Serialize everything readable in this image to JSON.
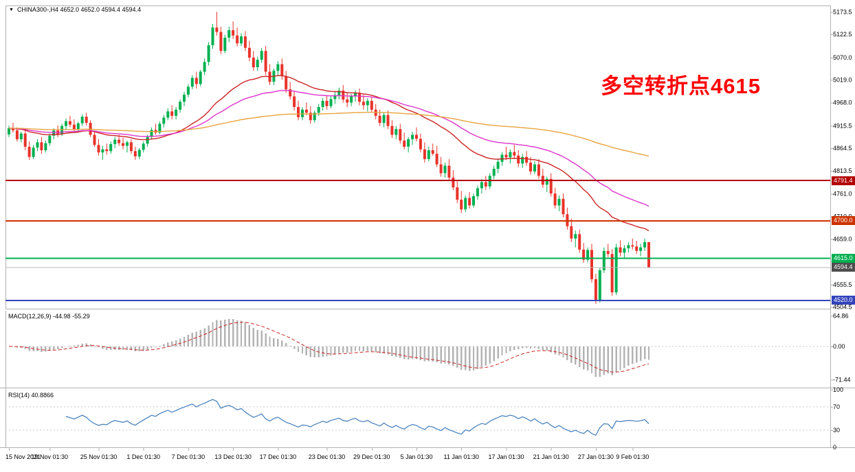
{
  "header": {
    "dropdown_icon": "▼",
    "symbol_line": "CHINA300-,H4 4652.0 4652.0 4594.4 4594.4"
  },
  "annotation": {
    "text": "多空转折点4615",
    "color": "#ff0000"
  },
  "colors": {
    "background": "#ffffff",
    "frame": "#b0b0b0",
    "text": "#000000",
    "candle_up": "#00b050",
    "candle_down": "#e8332a",
    "current_price_line": "#b8b8b8",
    "zero_line": "#c9c9c9"
  },
  "chart_data": {
    "type": "candlestick",
    "symbol": "CHINA300-",
    "timeframe": "H4",
    "ohlc_header": {
      "open": 4652.0,
      "high": 4652.0,
      "low": 4594.4,
      "close": 4594.4
    },
    "price_panel": {
      "ylim": [
        4501,
        5188
      ],
      "axis_ticks": [
        5173.5,
        5122.5,
        5070.0,
        5019.0,
        4968.0,
        4915.5,
        4864.5,
        4813.5,
        4761.0,
        4710.0,
        4659.0,
        4608.0,
        4555.5,
        4504.5
      ]
    },
    "ohlc": [
      [
        4896,
        4916,
        4890,
        4910
      ],
      [
        4910,
        4922,
        4900,
        4905
      ],
      [
        4905,
        4912,
        4880,
        4885
      ],
      [
        4885,
        4902,
        4878,
        4898
      ],
      [
        4898,
        4905,
        4860,
        4868
      ],
      [
        4868,
        4880,
        4838,
        4845
      ],
      [
        4845,
        4872,
        4840,
        4866
      ],
      [
        4866,
        4885,
        4858,
        4878
      ],
      [
        4878,
        4890,
        4852,
        4860
      ],
      [
        4860,
        4882,
        4855,
        4876
      ],
      [
        4876,
        4898,
        4870,
        4893
      ],
      [
        4893,
        4910,
        4885,
        4905
      ],
      [
        4905,
        4916,
        4890,
        4896
      ],
      [
        4896,
        4920,
        4892,
        4915
      ],
      [
        4915,
        4932,
        4905,
        4926
      ],
      [
        4926,
        4938,
        4912,
        4918
      ],
      [
        4918,
        4930,
        4902,
        4908
      ],
      [
        4908,
        4925,
        4900,
        4921
      ],
      [
        4921,
        4941,
        4915,
        4936
      ],
      [
        4936,
        4945,
        4916,
        4922
      ],
      [
        4922,
        4928,
        4890,
        4895
      ],
      [
        4895,
        4905,
        4868,
        4872
      ],
      [
        4872,
        4885,
        4848,
        4855
      ],
      [
        4855,
        4870,
        4838,
        4862
      ],
      [
        4862,
        4875,
        4850,
        4858
      ],
      [
        4858,
        4880,
        4852,
        4874
      ],
      [
        4874,
        4890,
        4865,
        4884
      ],
      [
        4884,
        4895,
        4870,
        4876
      ],
      [
        4876,
        4888,
        4862,
        4870
      ],
      [
        4870,
        4882,
        4855,
        4878
      ],
      [
        4878,
        4885,
        4852,
        4858
      ],
      [
        4858,
        4868,
        4838,
        4846
      ],
      [
        4846,
        4865,
        4840,
        4861
      ],
      [
        4861,
        4880,
        4855,
        4875
      ],
      [
        4875,
        4895,
        4868,
        4890
      ],
      [
        4890,
        4912,
        4884,
        4906
      ],
      [
        4906,
        4920,
        4895,
        4900
      ],
      [
        4900,
        4925,
        4896,
        4920
      ],
      [
        4920,
        4940,
        4912,
        4934
      ],
      [
        4934,
        4955,
        4928,
        4948
      ],
      [
        4948,
        4962,
        4930,
        4938
      ],
      [
        4938,
        4958,
        4930,
        4952
      ],
      [
        4952,
        4975,
        4945,
        4970
      ],
      [
        4970,
        4992,
        4960,
        4986
      ],
      [
        4986,
        5010,
        4980,
        5004
      ],
      [
        5004,
        5030,
        4998,
        5024
      ],
      [
        5024,
        5038,
        5000,
        5010
      ],
      [
        5010,
        5042,
        5005,
        5038
      ],
      [
        5038,
        5068,
        5030,
        5060
      ],
      [
        5060,
        5105,
        5052,
        5098
      ],
      [
        5098,
        5146,
        5090,
        5138
      ],
      [
        5138,
        5173.5,
        5120,
        5128
      ],
      [
        5128,
        5140,
        5078,
        5085
      ],
      [
        5085,
        5122,
        5080,
        5115
      ],
      [
        5115,
        5140,
        5105,
        5132
      ],
      [
        5132,
        5152,
        5112,
        5120
      ],
      [
        5120,
        5138,
        5095,
        5102
      ],
      [
        5102,
        5125,
        5096,
        5118
      ],
      [
        5118,
        5130,
        5085,
        5092
      ],
      [
        5092,
        5108,
        5062,
        5070
      ],
      [
        5070,
        5085,
        5040,
        5048
      ],
      [
        5048,
        5072,
        5040,
        5065
      ],
      [
        5065,
        5092,
        5058,
        5085
      ],
      [
        5085,
        5096,
        5030,
        5038
      ],
      [
        5038,
        5055,
        5008,
        5015
      ],
      [
        5015,
        5045,
        5008,
        5040
      ],
      [
        5040,
        5062,
        5030,
        5055
      ],
      [
        5055,
        5068,
        5020,
        5028
      ],
      [
        5028,
        5040,
        4990,
        4998
      ],
      [
        4998,
        5015,
        4975,
        4982
      ],
      [
        4982,
        4995,
        4950,
        4958
      ],
      [
        4958,
        4972,
        4928,
        4935
      ],
      [
        4935,
        4958,
        4928,
        4952
      ],
      [
        4952,
        4968,
        4940,
        4945
      ],
      [
        4945,
        4960,
        4920,
        4928
      ],
      [
        4928,
        4950,
        4922,
        4945
      ],
      [
        4945,
        4965,
        4938,
        4958
      ],
      [
        4958,
        4978,
        4950,
        4972
      ],
      [
        4972,
        4985,
        4952,
        4960
      ],
      [
        4960,
        4982,
        4955,
        4976
      ],
      [
        4976,
        4992,
        4965,
        4985
      ],
      [
        4985,
        5002,
        4975,
        4995
      ],
      [
        4995,
        5008,
        4968,
        4975
      ],
      [
        4975,
        4990,
        4958,
        4968
      ],
      [
        4968,
        4988,
        4960,
        4982
      ],
      [
        4982,
        4996,
        4970,
        4990
      ],
      [
        4990,
        5000,
        4962,
        4970
      ],
      [
        4970,
        4985,
        4952,
        4962
      ],
      [
        4962,
        4978,
        4948,
        4972
      ],
      [
        4972,
        4982,
        4945,
        4952
      ],
      [
        4952,
        4965,
        4930,
        4938
      ],
      [
        4938,
        4952,
        4915,
        4922
      ],
      [
        4922,
        4945,
        4912,
        4940
      ],
      [
        4940,
        4950,
        4908,
        4915
      ],
      [
        4915,
        4928,
        4888,
        4895
      ],
      [
        4895,
        4915,
        4885,
        4908
      ],
      [
        4908,
        4920,
        4875,
        4882
      ],
      [
        4882,
        4900,
        4862,
        4868
      ],
      [
        4868,
        4890,
        4855,
        4885
      ],
      [
        4885,
        4902,
        4872,
        4895
      ],
      [
        4895,
        4912,
        4880,
        4886
      ],
      [
        4886,
        4898,
        4855,
        4862
      ],
      [
        4862,
        4878,
        4832,
        4840
      ],
      [
        4840,
        4868,
        4835,
        4860
      ],
      [
        4860,
        4875,
        4848,
        4852
      ],
      [
        4852,
        4870,
        4822,
        4828
      ],
      [
        4828,
        4845,
        4800,
        4808
      ],
      [
        4808,
        4832,
        4798,
        4825
      ],
      [
        4825,
        4840,
        4792,
        4798
      ],
      [
        4798,
        4815,
        4770,
        4776
      ],
      [
        4776,
        4790,
        4740,
        4748
      ],
      [
        4748,
        4768,
        4718,
        4726
      ],
      [
        4726,
        4758,
        4720,
        4752
      ],
      [
        4752,
        4765,
        4728,
        4735
      ],
      [
        4735,
        4762,
        4730,
        4756
      ],
      [
        4756,
        4780,
        4748,
        4774
      ],
      [
        4774,
        4795,
        4762,
        4788
      ],
      [
        4788,
        4802,
        4770,
        4778
      ],
      [
        4778,
        4808,
        4772,
        4802
      ],
      [
        4802,
        4825,
        4795,
        4818
      ],
      [
        4818,
        4840,
        4808,
        4834
      ],
      [
        4834,
        4856,
        4825,
        4850
      ],
      [
        4850,
        4868,
        4838,
        4844
      ],
      [
        4844,
        4862,
        4830,
        4856
      ],
      [
        4856,
        4872,
        4840,
        4848
      ],
      [
        4848,
        4860,
        4822,
        4830
      ],
      [
        4830,
        4852,
        4820,
        4845
      ],
      [
        4845,
        4858,
        4825,
        4832
      ],
      [
        4832,
        4845,
        4805,
        4812
      ],
      [
        4812,
        4835,
        4806,
        4828
      ],
      [
        4828,
        4840,
        4795,
        4802
      ],
      [
        4802,
        4818,
        4775,
        4782
      ],
      [
        4782,
        4800,
        4765,
        4795
      ],
      [
        4795,
        4808,
        4755,
        4762
      ],
      [
        4762,
        4775,
        4728,
        4735
      ],
      [
        4735,
        4758,
        4722,
        4750
      ],
      [
        4750,
        4762,
        4708,
        4715
      ],
      [
        4715,
        4730,
        4680,
        4688
      ],
      [
        4688,
        4705,
        4652,
        4660
      ],
      [
        4660,
        4678,
        4640,
        4670
      ],
      [
        4670,
        4680,
        4628,
        4635
      ],
      [
        4635,
        4650,
        4605,
        4612
      ],
      [
        4612,
        4640,
        4606,
        4634
      ],
      [
        4634,
        4648,
        4560,
        4568
      ],
      [
        4568,
        4580,
        4512,
        4520
      ],
      [
        4520,
        4595,
        4515,
        4588
      ],
      [
        4588,
        4640,
        4582,
        4632
      ],
      [
        4632,
        4648,
        4618,
        4625
      ],
      [
        4625,
        4636,
        4530,
        4538
      ],
      [
        4538,
        4648,
        4532,
        4640
      ],
      [
        4640,
        4656,
        4620,
        4628
      ],
      [
        4628,
        4645,
        4615,
        4638
      ],
      [
        4638,
        4652,
        4628,
        4645
      ],
      [
        4645,
        4660,
        4635,
        4642
      ],
      [
        4642,
        4655,
        4625,
        4632
      ],
      [
        4632,
        4648,
        4620,
        4640
      ],
      [
        4640,
        4660,
        4632,
        4652
      ],
      [
        4652,
        4652,
        4594.4,
        4594.4
      ]
    ],
    "time_ticks": [
      {
        "i": 0,
        "label": "15 Nov 2021"
      },
      {
        "i": 10,
        "label": "19 Nov 01:30"
      },
      {
        "i": 22,
        "label": "25 Nov 01:30"
      },
      {
        "i": 33,
        "label": "1 Dec 01:30"
      },
      {
        "i": 44,
        "label": "7 Dec 01:30"
      },
      {
        "i": 55,
        "label": "13 Dec 01:30"
      },
      {
        "i": 66,
        "label": "17 Dec 01:30"
      },
      {
        "i": 78,
        "label": "23 Dec 01:30"
      },
      {
        "i": 89,
        "label": "29 Dec 01:30"
      },
      {
        "i": 100,
        "label": "5 Jan 01:30"
      },
      {
        "i": 111,
        "label": "11 Jan 01:30"
      },
      {
        "i": 122,
        "label": "17 Jan 01:30"
      },
      {
        "i": 133,
        "label": "21 Jan 01:30"
      },
      {
        "i": 144,
        "label": "27 Jan 01:30"
      },
      {
        "i": 153,
        "label": "9 Feb 01:30"
      }
    ],
    "moving_averages": [
      {
        "name": "ma-fast-red",
        "period": 34,
        "color": "#cc2222"
      },
      {
        "name": "ma-mid-magenta",
        "period": 60,
        "color": "#dd33cc"
      },
      {
        "name": "ma-slow-orange",
        "period": 200,
        "color": "#e8a33d"
      }
    ],
    "hlines": [
      {
        "price": 4791.4,
        "label": "4791.4",
        "color": "#b30000",
        "width": 2
      },
      {
        "price": 4700.0,
        "label": "4700.0",
        "color": "#cc3300",
        "width": 2
      },
      {
        "price": 4615.0,
        "label": "4615.0",
        "color": "#00b050",
        "width": 2
      },
      {
        "price": 4520.0,
        "label": "4520.0",
        "color": "#3344bb",
        "width": 2
      }
    ],
    "current_price": {
      "value": 4594.4,
      "label": "4594.4",
      "tag_bg": "#4d4d4d"
    },
    "macd": {
      "label": "MACD(12,26,9)",
      "values_text": "-44.98 -55.29",
      "fast": 12,
      "slow": 26,
      "signal": 9,
      "ylim": [
        -88,
        76
      ],
      "axis_values": [
        64.86,
        0,
        -71.44
      ],
      "axis_labels": [
        "64.86",
        "0.00",
        "-71.44"
      ],
      "hist_color": "#b3b3b3",
      "signal_color": "#cc2222"
    },
    "rsi": {
      "label": "RSI(14)",
      "value_text": "40.8866",
      "period": 14,
      "color": "#3f7cba",
      "levels": [
        70,
        30
      ],
      "axis_values": [
        100,
        70,
        30,
        0
      ],
      "axis_labels": [
        "100",
        "70",
        "30",
        "0"
      ]
    }
  }
}
